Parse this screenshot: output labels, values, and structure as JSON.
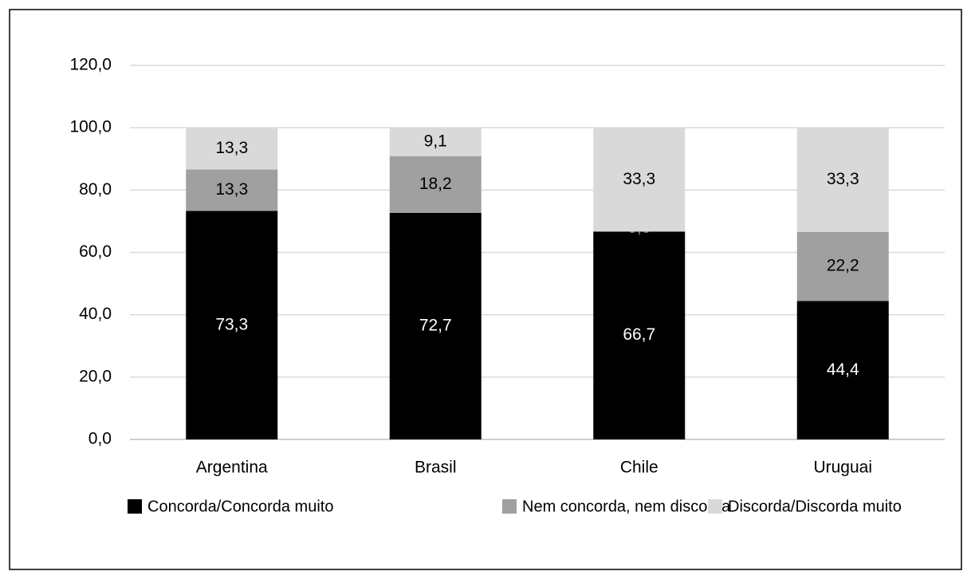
{
  "chart_data": {
    "type": "stacked_bar",
    "categories": [
      "Argentina",
      "Brasil",
      "Chile",
      "Uruguai"
    ],
    "series": [
      {
        "name": "Concorda/Concorda muito",
        "color": "#000000",
        "values": [
          73.3,
          72.7,
          66.7,
          44.4
        ],
        "value_labels": [
          "73,3",
          "72,7",
          "66,7",
          "44,4"
        ]
      },
      {
        "name": "Nem concorda, nem discorda",
        "color": "#a0a0a0",
        "values": [
          13.3,
          18.2,
          0.0,
          22.2
        ],
        "value_labels": [
          "13,3",
          "18,2",
          "0,0",
          "22,2"
        ]
      },
      {
        "name": "Discorda/Discorda muito",
        "color": "#d9d9d9",
        "values": [
          13.3,
          9.1,
          33.3,
          33.3
        ],
        "value_labels": [
          "13,3",
          "9,1",
          "33,3",
          "33,3"
        ]
      }
    ],
    "ylim": [
      0,
      120
    ],
    "yticks": [
      {
        "value": 0,
        "label": "0,0"
      },
      {
        "value": 20,
        "label": "20,0"
      },
      {
        "value": 40,
        "label": "40,0"
      },
      {
        "value": 60,
        "label": "60,0"
      },
      {
        "value": 80,
        "label": "80,0"
      },
      {
        "value": 100,
        "label": "100,0"
      },
      {
        "value": 120,
        "label": "120,0"
      }
    ],
    "grid": true,
    "legend": "bottom"
  }
}
